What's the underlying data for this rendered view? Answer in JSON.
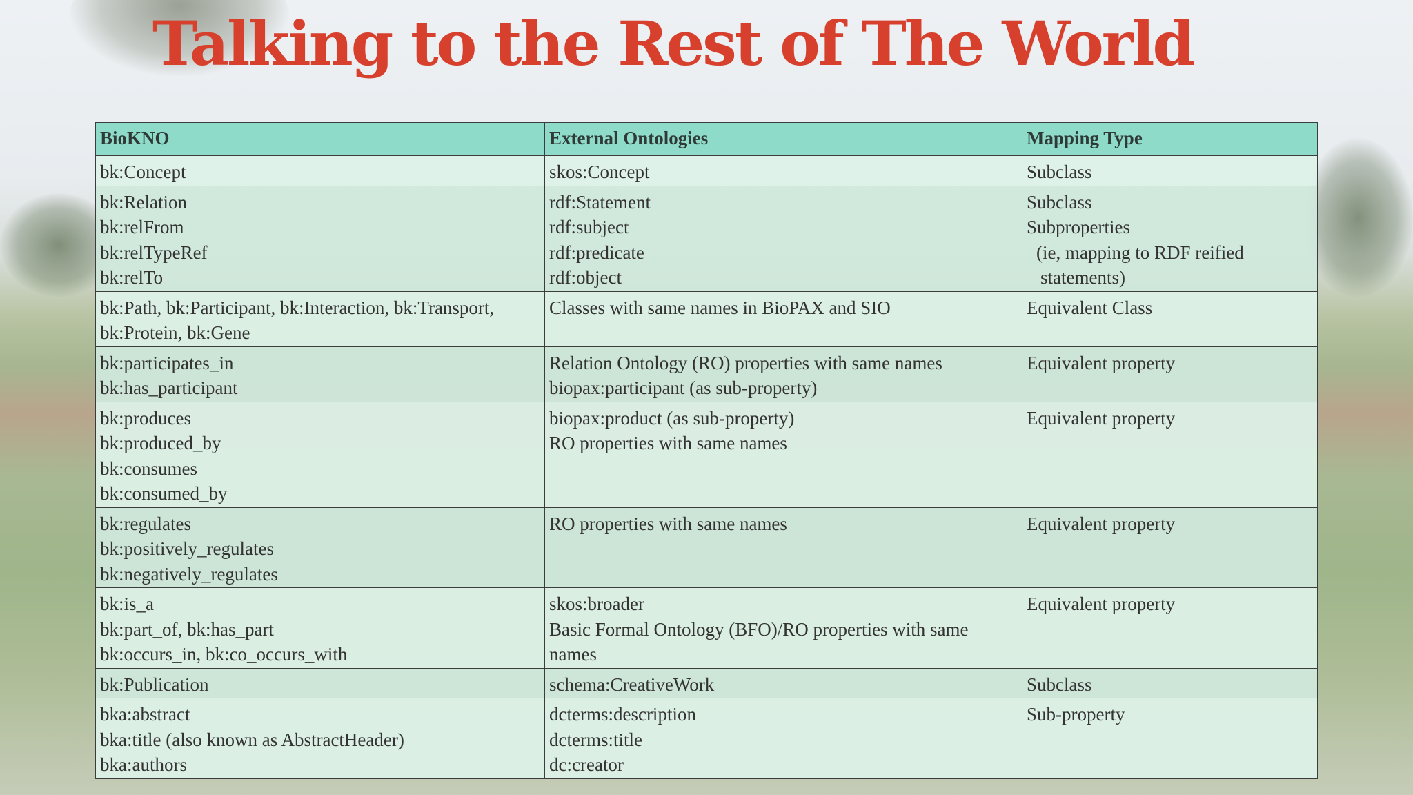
{
  "slide": {
    "title": "Talking to the Rest of The World"
  },
  "table": {
    "headers": [
      "BioKNO",
      "External Ontologies",
      "Mapping Type"
    ],
    "rows": [
      {
        "bioknO": [
          "bk:Concept"
        ],
        "external": [
          "skos:Concept"
        ],
        "mapping": [
          "Subclass"
        ]
      },
      {
        "bioknO": [
          "bk:Relation",
          "bk:relFrom",
          "bk:relTypeRef",
          "bk:relTo"
        ],
        "external": [
          "rdf:Statement",
          "rdf:subject",
          "rdf:predicate",
          "rdf:object"
        ],
        "mapping": [
          "Subclass",
          "Subproperties",
          "(ie, mapping to RDF reified",
          "statements)"
        ]
      },
      {
        "bioknO": [
          "bk:Path, bk:Participant, bk:Interaction, bk:Transport,",
          "bk:Protein, bk:Gene"
        ],
        "external": [
          "Classes with same names in BioPAX and SIO"
        ],
        "mapping": [
          "Equivalent Class"
        ]
      },
      {
        "bioknO": [
          "bk:participates_in",
          "bk:has_participant"
        ],
        "external": [
          "Relation Ontology (RO) properties with same names",
          "biopax:participant (as sub-property)"
        ],
        "mapping": [
          "Equivalent property"
        ]
      },
      {
        "bioknO": [
          "bk:produces",
          "bk:produced_by",
          "bk:consumes",
          "bk:consumed_by"
        ],
        "external": [
          "biopax:product (as sub-property)",
          "RO properties with same names"
        ],
        "mapping": [
          "Equivalent property"
        ]
      },
      {
        "bioknO": [
          "bk:regulates",
          "bk:positively_regulates",
          "bk:negatively_regulates"
        ],
        "external": [
          "RO properties with same names"
        ],
        "mapping": [
          "Equivalent property"
        ]
      },
      {
        "bioknO": [
          "bk:is_a",
          "bk:part_of, bk:has_part",
          "bk:occurs_in, bk:co_occurs_with"
        ],
        "external": [
          "skos:broader",
          "Basic Formal Ontology (BFO)/RO properties with same",
          "names"
        ],
        "mapping": [
          "Equivalent property"
        ]
      },
      {
        "bioknO": [
          "bk:Publication"
        ],
        "external": [
          "schema:CreativeWork"
        ],
        "mapping": [
          "Subclass"
        ]
      },
      {
        "bioknO": [
          "bka:abstract",
          "bka:title (also known as AbstractHeader)",
          "bka:authors"
        ],
        "external": [
          "dcterms:description",
          "dcterms:title",
          "dc:creator"
        ],
        "mapping": [
          "Sub-property"
        ]
      }
    ]
  }
}
